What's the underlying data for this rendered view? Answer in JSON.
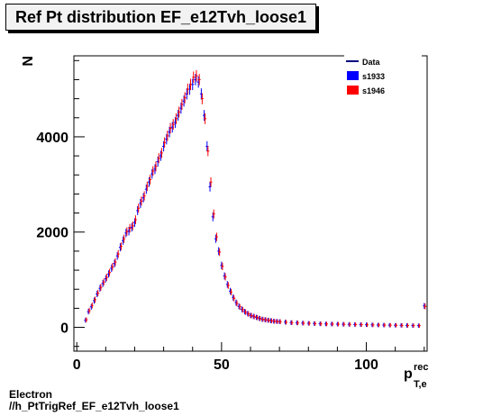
{
  "title": "Ref Pt distribution EF_e12Tvh_loose1",
  "caption": {
    "line1": "Electron",
    "line2": "//h_PtTrigRef_EF_e12Tvh_loose1"
  },
  "legend": [
    {
      "label": "Data",
      "color": "#000080",
      "symbol": "line"
    },
    {
      "label": "s1933",
      "color": "#0000ff",
      "symbol": "box"
    },
    {
      "label": "s1946",
      "color": "#ff0000",
      "symbol": "box"
    }
  ],
  "chart_data": {
    "type": "scatter",
    "title": "Ref Pt distribution EF_e12Tvh_loose1",
    "ylabel": "N",
    "xlabel": {
      "base": "p",
      "sup": "rec",
      "sub": "T,e"
    },
    "xlim": [
      -1,
      121
    ],
    "ylim": [
      -500,
      5700
    ],
    "x_ticks": [
      0,
      50,
      100
    ],
    "y_ticks": [
      0,
      2000,
      4000
    ],
    "series": [
      {
        "name": "s1933",
        "color": "#0000ff",
        "x": [
          3,
          4,
          5,
          6,
          7,
          8,
          9,
          10,
          11,
          12,
          13,
          14,
          15,
          16,
          17,
          18,
          19,
          20,
          21,
          22,
          23,
          24,
          25,
          26,
          27,
          28,
          29,
          30,
          31,
          32,
          33,
          34,
          35,
          36,
          37,
          38,
          39,
          40,
          41,
          42,
          43,
          44,
          45,
          46,
          47,
          48,
          49,
          50,
          51,
          52,
          53,
          54,
          55,
          56,
          57,
          58,
          59,
          60,
          61,
          62,
          63,
          64,
          65,
          66,
          67,
          68,
          69,
          70,
          72,
          74,
          76,
          78,
          80,
          82,
          84,
          86,
          88,
          90,
          92,
          94,
          96,
          98,
          100,
          102,
          104,
          106,
          108,
          110,
          112,
          114,
          116,
          118,
          120
        ],
        "y": [
          150,
          330,
          430,
          560,
          700,
          820,
          920,
          1020,
          1120,
          1240,
          1340,
          1500,
          1680,
          1820,
          1980,
          2020,
          2100,
          2200,
          2450,
          2600,
          2720,
          2900,
          3050,
          3220,
          3320,
          3480,
          3600,
          3800,
          3950,
          4100,
          4200,
          4300,
          4450,
          4600,
          4750,
          4900,
          5000,
          5100,
          5200,
          5150,
          4900,
          4450,
          3800,
          2950,
          2320,
          1860,
          1600,
          1300,
          1080,
          900,
          760,
          630,
          520,
          440,
          380,
          330,
          290,
          250,
          230,
          210,
          190,
          170,
          160,
          150,
          140,
          130,
          125,
          120,
          110,
          100,
          95,
          90,
          85,
          80,
          75,
          72,
          70,
          68,
          65,
          62,
          60,
          58,
          55,
          52,
          50,
          48,
          46,
          44,
          42,
          40,
          38,
          36,
          450
        ]
      },
      {
        "name": "s1946",
        "color": "#ff0000",
        "x": [
          3,
          4,
          5,
          6,
          7,
          8,
          9,
          10,
          11,
          12,
          13,
          14,
          15,
          16,
          17,
          18,
          19,
          20,
          21,
          22,
          23,
          24,
          25,
          26,
          27,
          28,
          29,
          30,
          31,
          32,
          33,
          34,
          35,
          36,
          37,
          38,
          39,
          40,
          41,
          42,
          43,
          44,
          45,
          46,
          47,
          48,
          49,
          50,
          51,
          52,
          53,
          54,
          55,
          56,
          57,
          58,
          59,
          60,
          61,
          62,
          63,
          64,
          65,
          66,
          67,
          68,
          69,
          70,
          72,
          74,
          76,
          78,
          80,
          82,
          84,
          86,
          88,
          90,
          92,
          94,
          96,
          98,
          100,
          102,
          104,
          106,
          108,
          110,
          112,
          114,
          116,
          118,
          120
        ],
        "y": [
          160,
          350,
          460,
          580,
          720,
          840,
          950,
          1050,
          1150,
          1270,
          1370,
          1540,
          1700,
          1860,
          2010,
          2080,
          2130,
          2260,
          2500,
          2650,
          2760,
          2960,
          3100,
          3280,
          3380,
          3550,
          3660,
          3880,
          4020,
          4180,
          4260,
          4380,
          4520,
          4680,
          4820,
          5000,
          5100,
          5250,
          5280,
          5200,
          4800,
          4380,
          3700,
          3050,
          2380,
          1900,
          1580,
          1280,
          1060,
          880,
          740,
          610,
          505,
          430,
          370,
          320,
          280,
          245,
          225,
          205,
          185,
          168,
          158,
          148,
          138,
          128,
          122,
          118,
          108,
          98,
          93,
          88,
          83,
          78,
          74,
          71,
          69,
          67,
          64,
          61,
          59,
          57,
          54,
          51,
          49,
          47,
          45,
          43,
          41,
          39,
          37,
          35,
          440
        ]
      }
    ],
    "grid": false,
    "legend_position": "top-right"
  }
}
